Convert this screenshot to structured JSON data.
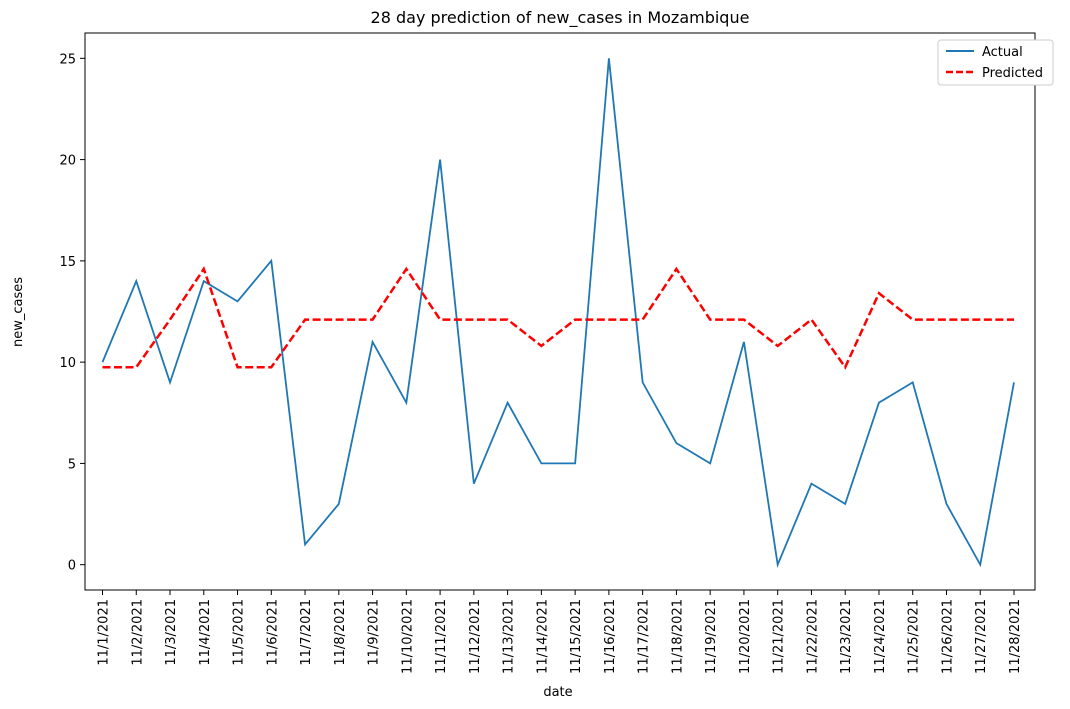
{
  "chart_data": {
    "type": "line",
    "title": "28 day prediction of new_cases in Mozambique",
    "xlabel": "date",
    "ylabel": "new_cases",
    "ylim": [
      -1.25,
      26.25
    ],
    "yticks": [
      0,
      5,
      10,
      15,
      20,
      25
    ],
    "grid": false,
    "legend_position": "top-right",
    "categories": [
      "11/1/2021",
      "11/2/2021",
      "11/3/2021",
      "11/4/2021",
      "11/5/2021",
      "11/6/2021",
      "11/7/2021",
      "11/8/2021",
      "11/9/2021",
      "11/10/2021",
      "11/11/2021",
      "11/12/2021",
      "11/13/2021",
      "11/14/2021",
      "11/15/2021",
      "11/16/2021",
      "11/17/2021",
      "11/18/2021",
      "11/19/2021",
      "11/20/2021",
      "11/21/2021",
      "11/22/2021",
      "11/23/2021",
      "11/24/2021",
      "11/25/2021",
      "11/26/2021",
      "11/27/2021",
      "11/28/2021"
    ],
    "series": [
      {
        "name": "Actual",
        "color": "#1f77b4",
        "style": "solid",
        "values": [
          10,
          14,
          9,
          14,
          13,
          15,
          1,
          3,
          11,
          8,
          20,
          4,
          8,
          5,
          5,
          25,
          9,
          6,
          5,
          11,
          0,
          4,
          3,
          8,
          9,
          3,
          0,
          9
        ]
      },
      {
        "name": "Predicted",
        "color": "#ff0000",
        "style": "dashed",
        "values": [
          9.75,
          9.75,
          12.1,
          14.6,
          9.75,
          9.75,
          12.1,
          12.1,
          12.1,
          14.6,
          12.1,
          12.1,
          12.1,
          10.8,
          12.1,
          12.1,
          12.1,
          14.6,
          12.1,
          12.1,
          10.8,
          12.1,
          9.75,
          13.4,
          12.1,
          12.1,
          12.1,
          12.1
        ]
      }
    ]
  }
}
